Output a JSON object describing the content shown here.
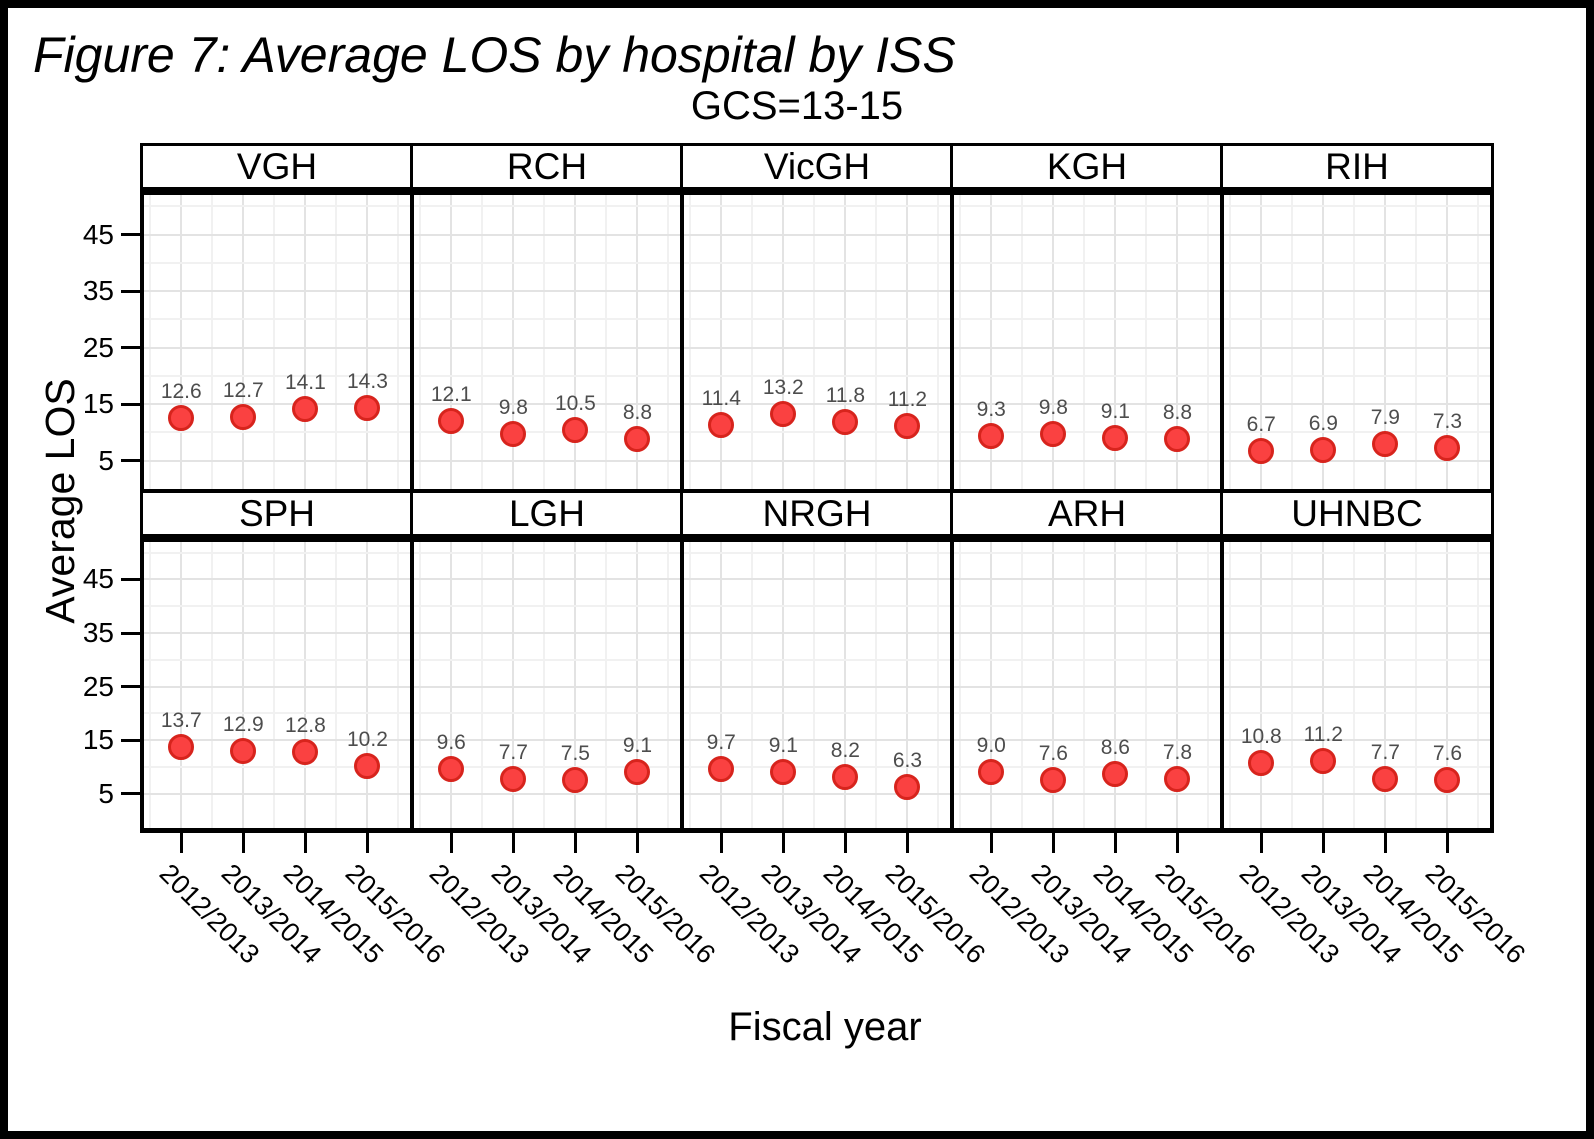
{
  "figure": {
    "title": "Figure 7: Average LOS by hospital by ISS",
    "subtitle": "GCS=13-15"
  },
  "chart_data": {
    "type": "scatter",
    "title": "Figure 7: Average LOS by hospital by ISS",
    "subtitle": "GCS=13-15",
    "xlabel": "Fiscal year",
    "ylabel": "Average LOS",
    "categories": [
      "2012/2013",
      "2013/2014",
      "2014/2015",
      "2015/2016"
    ],
    "yticks": [
      5,
      15,
      25,
      35,
      45
    ],
    "ylim": [
      0,
      52
    ],
    "grid": true,
    "legend": false,
    "facet_layout": {
      "rows": 2,
      "cols": 5
    },
    "marker": {
      "shape": "circle",
      "fill": "#fa4141",
      "stroke": "#d7241d"
    },
    "value_label_color": "#4d4d4d",
    "panels": [
      {
        "hospital": "VGH",
        "values": [
          12.6,
          12.7,
          14.1,
          14.3
        ]
      },
      {
        "hospital": "RCH",
        "values": [
          12.1,
          9.8,
          10.5,
          8.8
        ]
      },
      {
        "hospital": "VicGH",
        "values": [
          11.4,
          13.2,
          11.8,
          11.2
        ]
      },
      {
        "hospital": "KGH",
        "values": [
          9.3,
          9.8,
          9.1,
          8.8
        ]
      },
      {
        "hospital": "RIH",
        "values": [
          6.7,
          6.9,
          7.9,
          7.3
        ]
      },
      {
        "hospital": "SPH",
        "values": [
          13.7,
          12.9,
          12.8,
          10.2
        ]
      },
      {
        "hospital": "LGH",
        "values": [
          9.6,
          7.7,
          7.5,
          9.1
        ]
      },
      {
        "hospital": "NRGH",
        "values": [
          9.7,
          9.1,
          8.2,
          6.3
        ]
      },
      {
        "hospital": "ARH",
        "values": [
          9.0,
          7.6,
          8.6,
          7.8
        ]
      },
      {
        "hospital": "UHNBC",
        "values": [
          10.8,
          11.2,
          7.7,
          7.6
        ]
      }
    ]
  }
}
